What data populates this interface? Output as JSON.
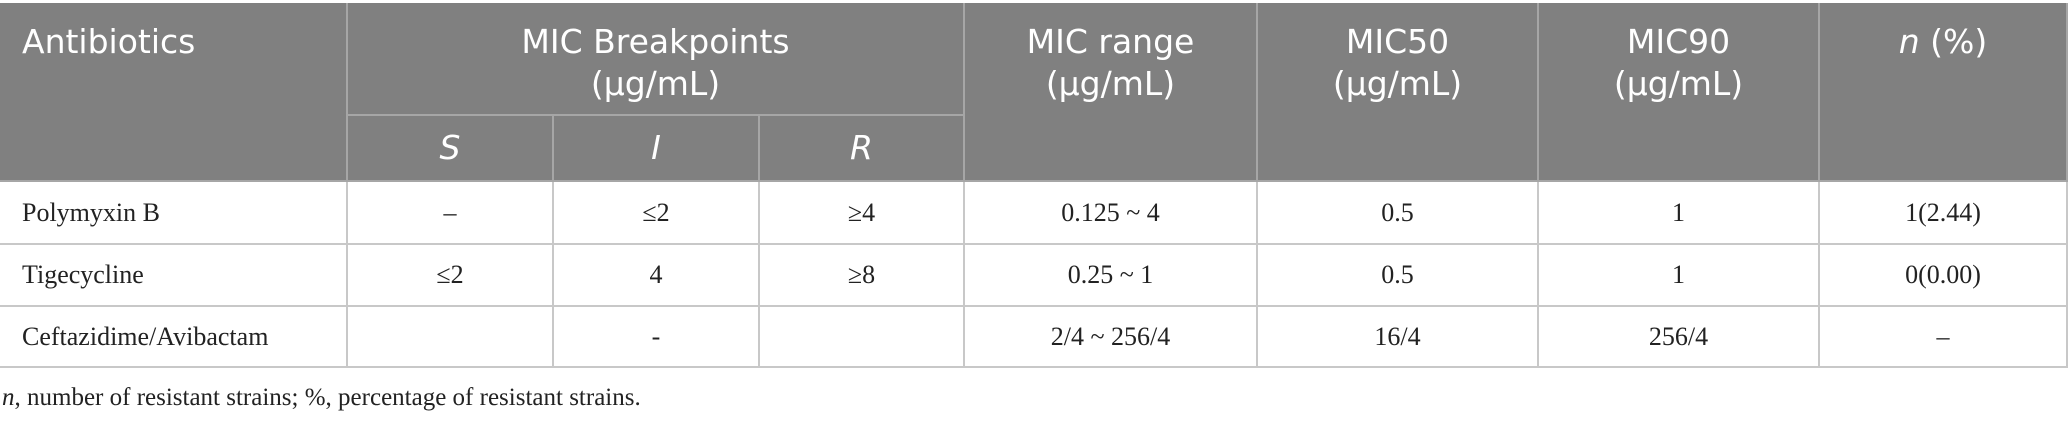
{
  "table": {
    "header": [
      "Antibiotics",
      "MIC Breakpoints\n(μg/mL)",
      "MIC range\n(μg/mL)",
      "MIC50\n(μg/mL)",
      "MIC90\n(μg/mL)",
      {
        "italic": "n",
        "rest": " (%)"
      }
    ],
    "subheader": [
      "S",
      "I",
      "R"
    ],
    "rows": [
      [
        "Polymyxin B",
        "–",
        "≤2",
        "≥4",
        "0.125 ~ 4",
        "0.5",
        "1",
        "1(2.44)"
      ],
      [
        "Tigecycline",
        "≤2",
        "4",
        "≥8",
        "0.25 ~ 1",
        "0.5",
        "1",
        "0(0.00)"
      ],
      [
        "Ceftazidime/Avibactam",
        null,
        "-",
        null,
        "2/4 ~ 256/4",
        "16/4",
        "256/4",
        "–"
      ]
    ]
  },
  "footnote": {
    "italic": "n",
    "rest": ", number of resistant strains; %, percentage of resistant strains."
  }
}
